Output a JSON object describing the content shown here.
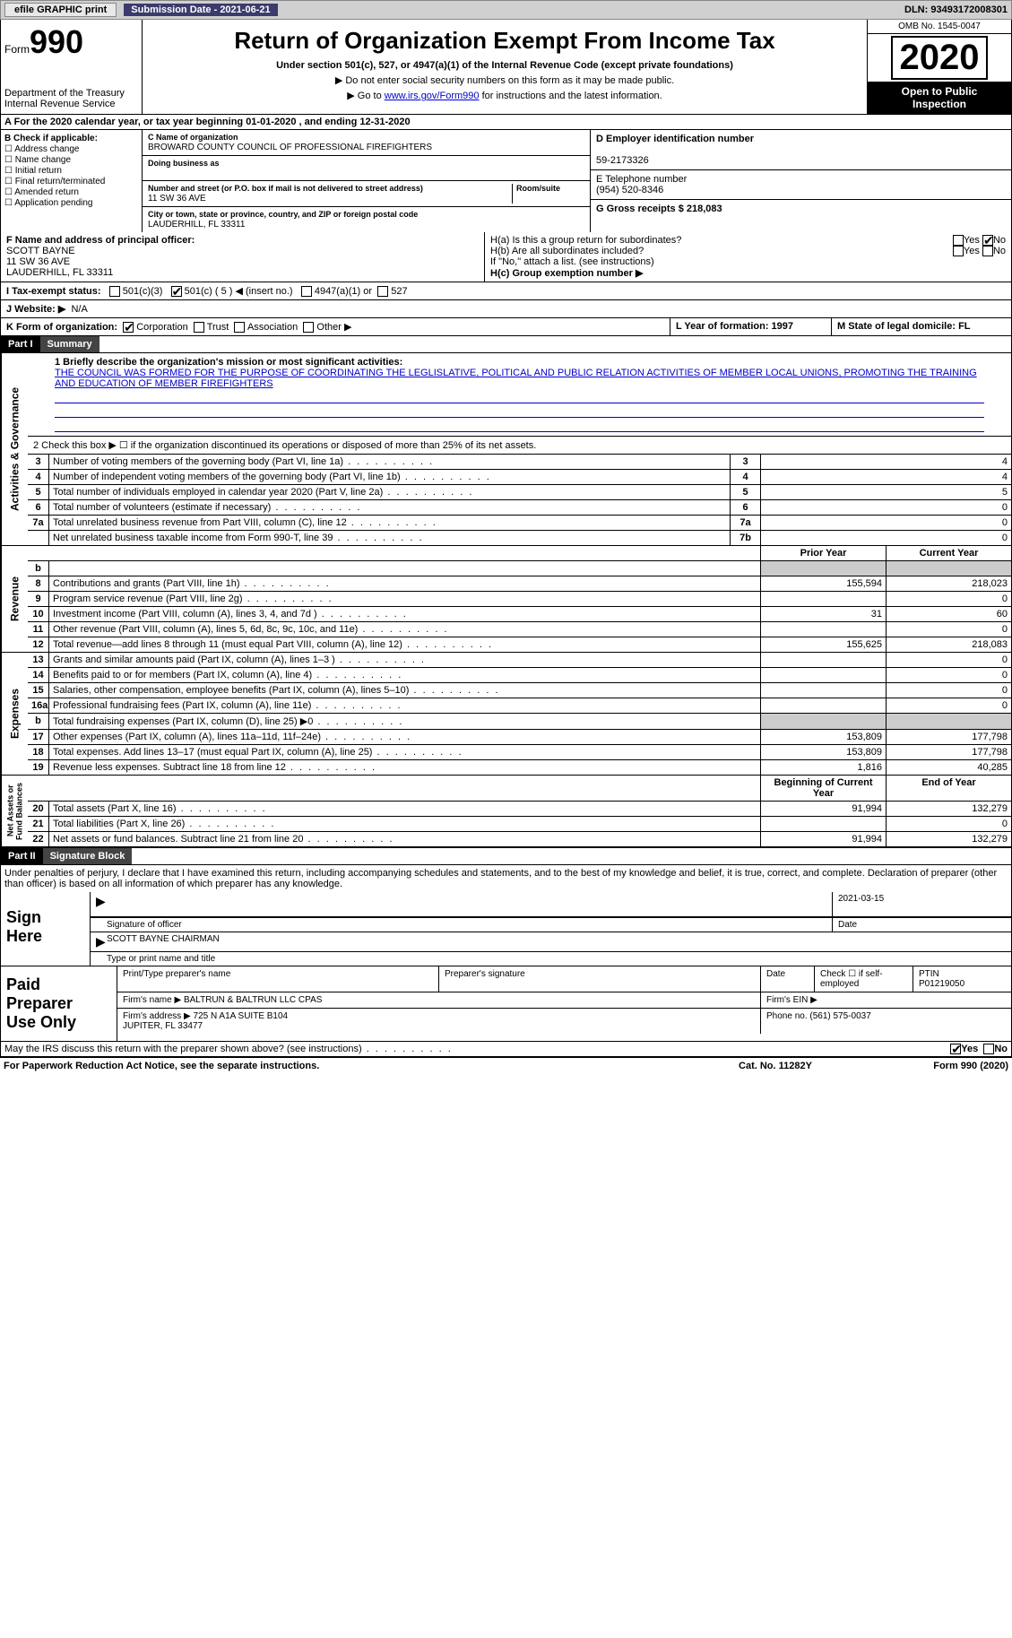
{
  "topbar": {
    "efile_label": "efile GRAPHIC print",
    "submission_label": "Submission Date - 2021-06-21",
    "dln_label": "DLN: 93493172008301"
  },
  "header": {
    "form_prefix": "Form",
    "form_number": "990",
    "dept": "Department of the Treasury\nInternal Revenue Service",
    "title": "Return of Organization Exempt From Income Tax",
    "sub1": "Under section 501(c), 527, or 4947(a)(1) of the Internal Revenue Code (except private foundations)",
    "sub2": "▶ Do not enter social security numbers on this form as it may be made public.",
    "sub3_pre": "▶ Go to ",
    "sub3_link": "www.irs.gov/Form990",
    "sub3_post": " for instructions and the latest information.",
    "omb": "OMB No. 1545-0047",
    "year": "2020",
    "open_pub": "Open to Public\nInspection"
  },
  "period": {
    "text": "A For the 2020 calendar year, or tax year beginning 01-01-2020   , and ending 12-31-2020"
  },
  "boxB": {
    "label": "B Check if applicable:",
    "opts": [
      "Address change",
      "Name change",
      "Initial return",
      "Final return/terminated",
      "Amended return",
      "Application pending"
    ]
  },
  "boxC": {
    "name_lbl": "C Name of organization",
    "name": "BROWARD COUNTY COUNCIL OF PROFESSIONAL FIREFIGHTERS",
    "dba_lbl": "Doing business as",
    "addr_lbl": "Number and street (or P.O. box if mail is not delivered to street address)",
    "room_lbl": "Room/suite",
    "addr": "11 SW 36 AVE",
    "city_lbl": "City or town, state or province, country, and ZIP or foreign postal code",
    "city": "LAUDERHILL, FL  33311"
  },
  "boxD": {
    "lbl": "D Employer identification number",
    "val": "59-2173326"
  },
  "boxE": {
    "lbl": "E Telephone number",
    "val": "(954) 520-8346"
  },
  "boxG": {
    "lbl": "G Gross receipts $ 218,083"
  },
  "boxF": {
    "lbl": "F  Name and address of principal officer:",
    "name": "SCOTT BAYNE",
    "addr1": "11 SW 36 AVE",
    "addr2": "LAUDERHILL, FL  33311"
  },
  "boxH": {
    "a_lbl": "H(a)  Is this a group return for subordinates?",
    "b_lbl": "H(b)  Are all subordinates included?",
    "b_note": "If \"No,\" attach a list. (see instructions)",
    "c_lbl": "H(c)  Group exemption number ▶",
    "yes": "Yes",
    "no": "No"
  },
  "lineI": {
    "lbl": "I   Tax-exempt status:",
    "o1": "501(c)(3)",
    "o2": "501(c) ( 5 ) ◀ (insert no.)",
    "o3": "4947(a)(1) or",
    "o4": "527"
  },
  "lineJ": {
    "lbl": "J   Website: ▶",
    "val": "N/A"
  },
  "lineK": {
    "lbl": "K Form of organization:",
    "o1": "Corporation",
    "o2": "Trust",
    "o3": "Association",
    "o4": "Other ▶"
  },
  "lineL": {
    "lbl": "L Year of formation: 1997"
  },
  "lineM": {
    "lbl": "M State of legal domicile: FL"
  },
  "part1": {
    "hdr": "Part I",
    "title": "Summary"
  },
  "mission": {
    "lbl": "1  Briefly describe the organization's mission or most significant activities:",
    "txt": "THE COUNCIL WAS FORMED FOR THE PURPOSE OF COORDINATING THE LEGLISLATIVE, POLITICAL AND PUBLIC RELATION ACTIVITIES OF MEMBER LOCAL UNIONS, PROMOTING THE TRAINING AND EDUCATION OF MEMBER FIREFIGHTERS"
  },
  "line2": "2   Check this box ▶ ☐  if the organization discontinued its operations or disposed of more than 25% of its net assets.",
  "gov_lines": [
    {
      "n": "3",
      "d": "Number of voting members of the governing body (Part VI, line 1a)",
      "box": "3",
      "v": "4"
    },
    {
      "n": "4",
      "d": "Number of independent voting members of the governing body (Part VI, line 1b)",
      "box": "4",
      "v": "4"
    },
    {
      "n": "5",
      "d": "Total number of individuals employed in calendar year 2020 (Part V, line 2a)",
      "box": "5",
      "v": "5"
    },
    {
      "n": "6",
      "d": "Total number of volunteers (estimate if necessary)",
      "box": "6",
      "v": "0"
    },
    {
      "n": "7a",
      "d": "Total unrelated business revenue from Part VIII, column (C), line 12",
      "box": "7a",
      "v": "0"
    },
    {
      "n": "",
      "d": "Net unrelated business taxable income from Form 990-T, line 39",
      "box": "7b",
      "v": "0"
    }
  ],
  "col_hdr": {
    "py": "Prior Year",
    "cy": "Current Year"
  },
  "rev_lines": [
    {
      "n": "b",
      "d": "",
      "py": "",
      "cy": "",
      "shade": true
    },
    {
      "n": "8",
      "d": "Contributions and grants (Part VIII, line 1h)",
      "py": "155,594",
      "cy": "218,023"
    },
    {
      "n": "9",
      "d": "Program service revenue (Part VIII, line 2g)",
      "py": "",
      "cy": "0"
    },
    {
      "n": "10",
      "d": "Investment income (Part VIII, column (A), lines 3, 4, and 7d )",
      "py": "31",
      "cy": "60"
    },
    {
      "n": "11",
      "d": "Other revenue (Part VIII, column (A), lines 5, 6d, 8c, 9c, 10c, and 11e)",
      "py": "",
      "cy": "0"
    },
    {
      "n": "12",
      "d": "Total revenue—add lines 8 through 11 (must equal Part VIII, column (A), line 12)",
      "py": "155,625",
      "cy": "218,083"
    }
  ],
  "exp_lines": [
    {
      "n": "13",
      "d": "Grants and similar amounts paid (Part IX, column (A), lines 1–3 )",
      "py": "",
      "cy": "0"
    },
    {
      "n": "14",
      "d": "Benefits paid to or for members (Part IX, column (A), line 4)",
      "py": "",
      "cy": "0"
    },
    {
      "n": "15",
      "d": "Salaries, other compensation, employee benefits (Part IX, column (A), lines 5–10)",
      "py": "",
      "cy": "0"
    },
    {
      "n": "16a",
      "d": "Professional fundraising fees (Part IX, column (A), line 11e)",
      "py": "",
      "cy": "0"
    },
    {
      "n": "b",
      "d": "Total fundraising expenses (Part IX, column (D), line 25) ▶0",
      "py": "",
      "cy": "",
      "shade": true
    },
    {
      "n": "17",
      "d": "Other expenses (Part IX, column (A), lines 11a–11d, 11f–24e)",
      "py": "153,809",
      "cy": "177,798"
    },
    {
      "n": "18",
      "d": "Total expenses. Add lines 13–17 (must equal Part IX, column (A), line 25)",
      "py": "153,809",
      "cy": "177,798"
    },
    {
      "n": "19",
      "d": "Revenue less expenses. Subtract line 18 from line 12",
      "py": "1,816",
      "cy": "40,285"
    }
  ],
  "net_hdr": {
    "py": "Beginning of Current Year",
    "cy": "End of Year"
  },
  "net_lines": [
    {
      "n": "20",
      "d": "Total assets (Part X, line 16)",
      "py": "91,994",
      "cy": "132,279"
    },
    {
      "n": "21",
      "d": "Total liabilities (Part X, line 26)",
      "py": "",
      "cy": "0"
    },
    {
      "n": "22",
      "d": "Net assets or fund balances. Subtract line 21 from line 20",
      "py": "91,994",
      "cy": "132,279"
    }
  ],
  "vlabels": {
    "gov": "Activities & Governance",
    "rev": "Revenue",
    "exp": "Expenses",
    "net": "Net Assets or\nFund Balances"
  },
  "part2": {
    "hdr": "Part II",
    "title": "Signature Block"
  },
  "penalties": "Under penalties of perjury, I declare that I have examined this return, including accompanying schedules and statements, and to the best of my knowledge and belief, it is true, correct, and complete. Declaration of preparer (other than officer) is based on all information of which preparer has any knowledge.",
  "sign": {
    "here": "Sign\nHere",
    "sig_officer": "Signature of officer",
    "date": "Date",
    "date_val": "2021-03-15",
    "name": "SCOTT BAYNE CHAIRMAN",
    "name_lbl": "Type or print name and title"
  },
  "prep": {
    "label": "Paid\nPreparer\nUse Only",
    "r1": {
      "c1": "Print/Type preparer's name",
      "c2": "Preparer's signature",
      "c3": "Date",
      "c4": "Check ☐ if self-employed",
      "c5": "PTIN\nP01219050"
    },
    "r2": {
      "c1": "Firm's name   ▶ BALTRUN & BALTRUN LLC CPAS",
      "c2": "Firm's EIN ▶"
    },
    "r3": {
      "c1": "Firm's address ▶ 725 N A1A SUITE B104\n                          JUPITER, FL  33477",
      "c2": "Phone no. (561) 575-0037"
    }
  },
  "discuss": "May the IRS discuss this return with the preparer shown above? (see instructions)",
  "footer": {
    "left": "For Paperwork Reduction Act Notice, see the separate instructions.",
    "mid": "Cat. No. 11282Y",
    "right": "Form 990 (2020)"
  },
  "colors": {
    "link": "#0000cc",
    "topbar_bg": "#d0d0d0",
    "subdate_bg": "#3b3b6d",
    "black": "#000000",
    "shade": "#cccccc"
  }
}
